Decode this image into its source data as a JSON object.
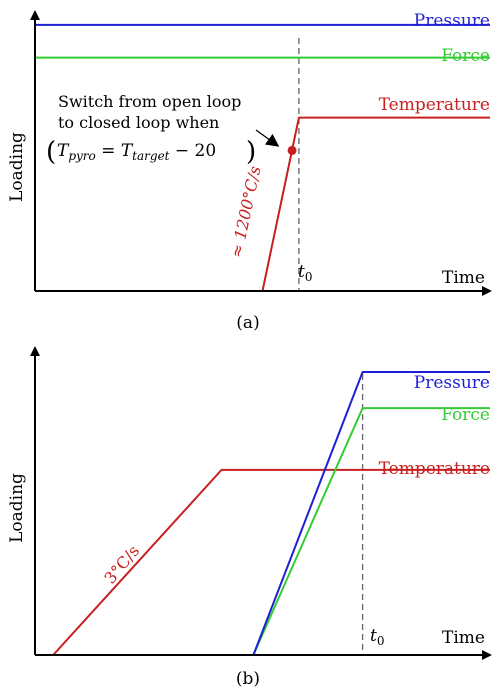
{
  "colors": {
    "pressure": "#1f1fd6",
    "force": "#33cc33",
    "temperature": "#c82020",
    "axis": "#000000",
    "marker_line": "#666666"
  },
  "chart_data": [
    {
      "type": "line",
      "panel_label": "(a)",
      "xlabel": "Time",
      "ylabel": "Loading",
      "xlim": [
        0,
        10
      ],
      "ylim": [
        0,
        10
      ],
      "grid": false,
      "t0_label": "t",
      "t0_sub": "0",
      "t0": 5.8,
      "series": [
        {
          "name": "Pressure",
          "color_key": "pressure",
          "x": [
            0,
            10
          ],
          "y": [
            9.75,
            9.75
          ]
        },
        {
          "name": "Force",
          "color_key": "force",
          "x": [
            0,
            10
          ],
          "y": [
            8.55,
            8.55
          ]
        },
        {
          "name": "Temperature",
          "color_key": "temperature",
          "x": [
            0,
            5.0,
            5.8,
            10
          ],
          "y": [
            0,
            0,
            6.35,
            6.35
          ]
        }
      ],
      "annotations": {
        "rate_label": "≈ 1200°C/s",
        "switch_line1": "Switch from open loop",
        "switch_line2": "to closed loop when",
        "formula": {
          "T": "T",
          "pyro": "pyro",
          "eq": " = ",
          "target": "target",
          "minus": " − 20"
        },
        "switch_point": {
          "x": 5.65,
          "y": 5.15
        }
      }
    },
    {
      "type": "line",
      "panel_label": "(b)",
      "xlabel": "Time",
      "ylabel": "Loading",
      "xlim": [
        0,
        10
      ],
      "ylim": [
        0,
        10
      ],
      "grid": false,
      "t0_label": "t",
      "t0_sub": "0",
      "t0": 7.2,
      "series": [
        {
          "name": "Pressure",
          "color_key": "pressure",
          "x": [
            0,
            4.8,
            7.2,
            10
          ],
          "y": [
            0,
            0,
            9.4,
            9.4
          ]
        },
        {
          "name": "Force",
          "color_key": "force",
          "x": [
            0,
            4.8,
            7.2,
            10
          ],
          "y": [
            0,
            0,
            8.2,
            8.2
          ]
        },
        {
          "name": "Temperature",
          "color_key": "temperature",
          "x": [
            0,
            0.4,
            4.1,
            10
          ],
          "y": [
            0,
            0,
            6.15,
            6.15
          ]
        }
      ],
      "annotations": {
        "rate_label": "3°C/s"
      }
    }
  ]
}
